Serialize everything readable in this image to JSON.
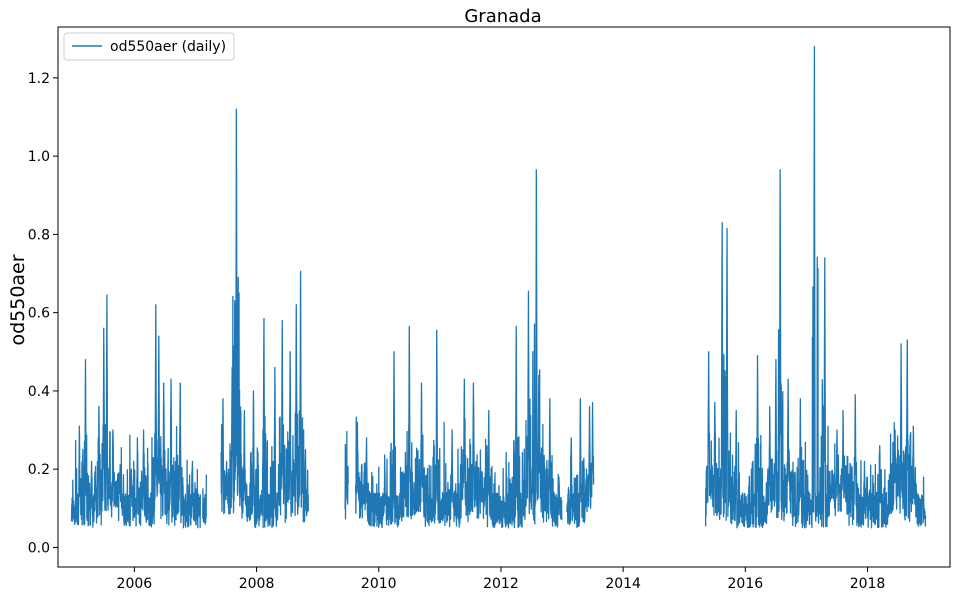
{
  "chart_data": {
    "type": "line",
    "title": "Granada",
    "xlabel": "",
    "ylabel": "od550aer",
    "xlim": [
      2004.75,
      2019.35
    ],
    "ylim": [
      -0.05,
      1.33
    ],
    "x_ticks": [
      2006,
      2008,
      2010,
      2012,
      2014,
      2016,
      2018
    ],
    "x_tick_labels": [
      "2006",
      "2008",
      "2010",
      "2012",
      "2014",
      "2016",
      "2018"
    ],
    "y_ticks": [
      0.0,
      0.2,
      0.4,
      0.6,
      0.8,
      1.0,
      1.2
    ],
    "y_tick_labels": [
      "0.0",
      "0.2",
      "0.4",
      "0.6",
      "0.8",
      "1.0",
      "1.2"
    ],
    "grid": false,
    "legend_position": "top-left",
    "series": [
      {
        "name": "od550aer (daily)",
        "color": "#1f77b4",
        "data_segments": [
          {
            "start": 2004.97,
            "end": 2007.08,
            "peaks": [
              [
                2005.0,
                0.12
              ],
              [
                2005.1,
                0.31
              ],
              [
                2005.2,
                0.48
              ],
              [
                2005.3,
                0.22
              ],
              [
                2005.42,
                0.36
              ],
              [
                2005.5,
                0.56
              ],
              [
                2005.55,
                0.645
              ],
              [
                2005.65,
                0.3
              ],
              [
                2005.95,
                0.2
              ],
              [
                2006.05,
                0.28
              ],
              [
                2006.15,
                0.3
              ],
              [
                2006.35,
                0.62
              ],
              [
                2006.4,
                0.54
              ],
              [
                2006.48,
                0.42
              ],
              [
                2006.6,
                0.43
              ],
              [
                2006.75,
                0.42
              ],
              [
                2006.95,
                0.22
              ]
            ]
          },
          {
            "start": 2007.12,
            "end": 2007.18,
            "peaks": [
              [
                2007.15,
                0.065
              ]
            ]
          },
          {
            "start": 2007.42,
            "end": 2008.85,
            "peaks": [
              [
                2007.45,
                0.38
              ],
              [
                2007.6,
                0.46
              ],
              [
                2007.67,
                1.12
              ],
              [
                2007.7,
                0.69
              ],
              [
                2007.8,
                0.35
              ],
              [
                2007.95,
                0.4
              ],
              [
                2008.12,
                0.585
              ],
              [
                2008.3,
                0.46
              ],
              [
                2008.42,
                0.58
              ],
              [
                2008.55,
                0.5
              ],
              [
                2008.65,
                0.62
              ],
              [
                2008.72,
                0.705
              ],
              [
                2008.8,
                0.25
              ]
            ]
          },
          {
            "start": 2009.45,
            "end": 2009.5,
            "peaks": [
              [
                2009.47,
                0.25
              ]
            ]
          },
          {
            "start": 2009.62,
            "end": 2013.0,
            "peaks": [
              [
                2009.65,
                0.32
              ],
              [
                2009.8,
                0.28
              ],
              [
                2010.1,
                0.2
              ],
              [
                2010.25,
                0.5
              ],
              [
                2010.5,
                0.565
              ],
              [
                2010.7,
                0.42
              ],
              [
                2010.95,
                0.555
              ],
              [
                2011.2,
                0.3
              ],
              [
                2011.4,
                0.43
              ],
              [
                2011.55,
                0.42
              ],
              [
                2011.8,
                0.35
              ],
              [
                2012.25,
                0.565
              ],
              [
                2012.45,
                0.655
              ],
              [
                2012.58,
                0.965
              ],
              [
                2012.62,
                0.44
              ],
              [
                2012.8,
                0.38
              ],
              [
                2012.95,
                0.18
              ]
            ]
          },
          {
            "start": 2013.08,
            "end": 2013.52,
            "peaks": [
              [
                2013.15,
                0.28
              ],
              [
                2013.3,
                0.38
              ],
              [
                2013.45,
                0.36
              ],
              [
                2013.5,
                0.37
              ]
            ]
          },
          {
            "start": 2015.35,
            "end": 2018.95,
            "peaks": [
              [
                2015.4,
                0.5
              ],
              [
                2015.5,
                0.37
              ],
              [
                2015.62,
                0.83
              ],
              [
                2015.7,
                0.815
              ],
              [
                2015.85,
                0.35
              ],
              [
                2016.1,
                0.2
              ],
              [
                2016.2,
                0.49
              ],
              [
                2016.4,
                0.36
              ],
              [
                2016.5,
                0.48
              ],
              [
                2016.57,
                0.965
              ],
              [
                2016.7,
                0.43
              ],
              [
                2016.9,
                0.38
              ],
              [
                2017.13,
                1.28
              ],
              [
                2017.3,
                0.74
              ],
              [
                2017.5,
                0.3
              ],
              [
                2017.6,
                0.35
              ],
              [
                2017.8,
                0.39
              ],
              [
                2017.95,
                0.22
              ],
              [
                2018.2,
                0.26
              ],
              [
                2018.45,
                0.3
              ],
              [
                2018.55,
                0.52
              ],
              [
                2018.65,
                0.53
              ],
              [
                2018.75,
                0.31
              ],
              [
                2018.9,
                0.13
              ]
            ]
          }
        ]
      }
    ]
  }
}
